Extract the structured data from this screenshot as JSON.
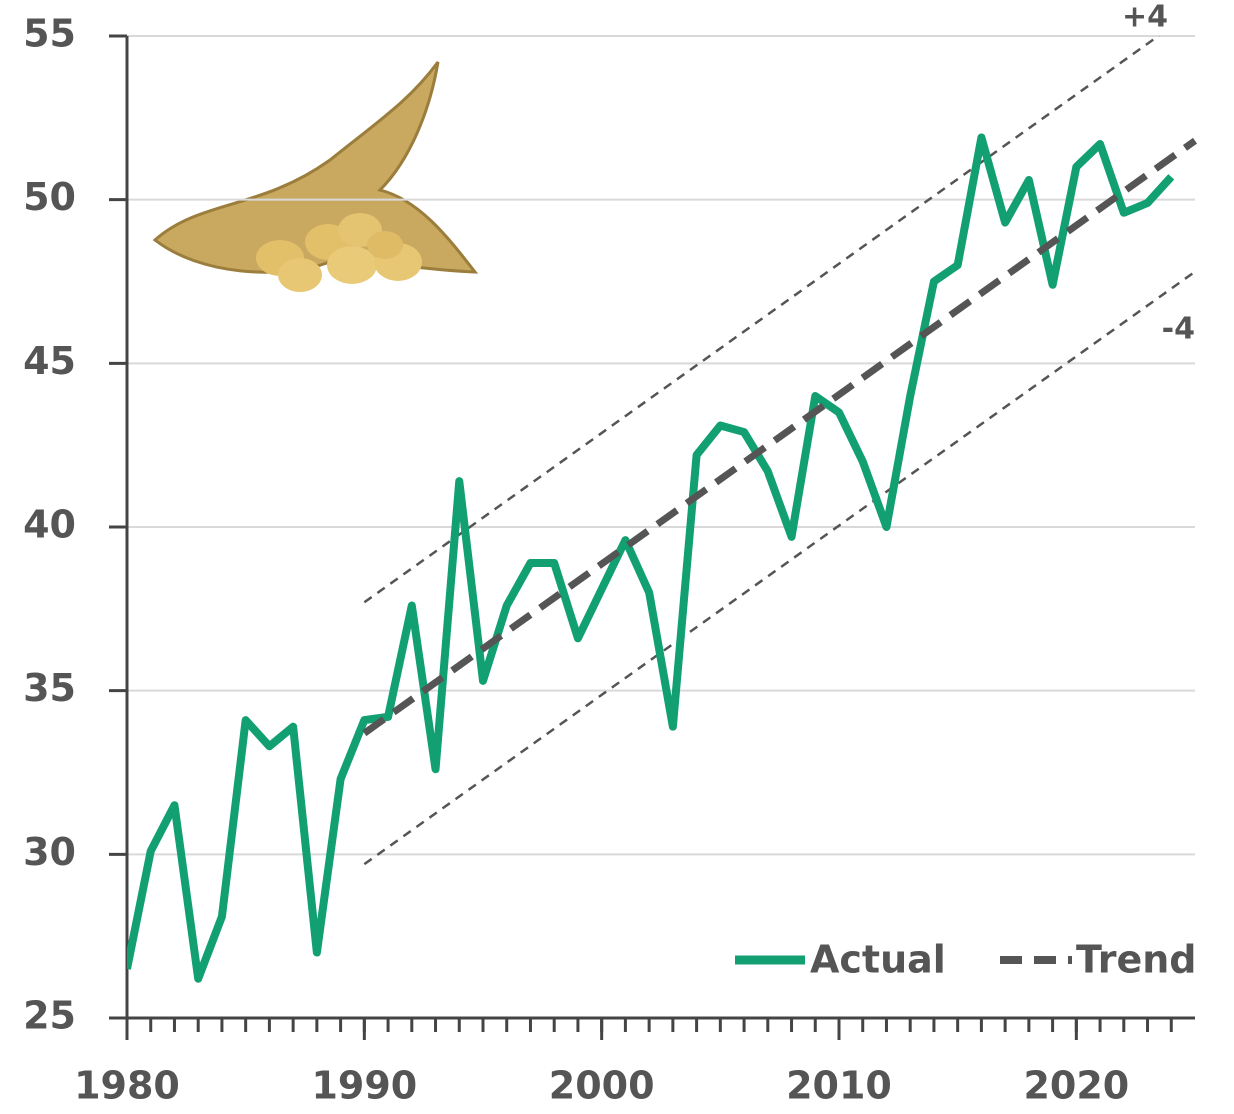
{
  "chart_data": {
    "type": "line",
    "x": [
      1980,
      1981,
      1982,
      1983,
      1984,
      1985,
      1986,
      1987,
      1988,
      1989,
      1990,
      1991,
      1992,
      1993,
      1994,
      1995,
      1996,
      1997,
      1998,
      1999,
      2000,
      2001,
      2002,
      2003,
      2004,
      2005,
      2006,
      2007,
      2008,
      2009,
      2010,
      2011,
      2012,
      2013,
      2014,
      2015,
      2016,
      2017,
      2018,
      2019,
      2020,
      2021,
      2022,
      2023,
      2024
    ],
    "series": [
      {
        "name": "Actual",
        "color": "#12a073",
        "values": [
          26.5,
          30.1,
          31.5,
          26.2,
          28.1,
          34.1,
          33.3,
          33.9,
          27.0,
          32.3,
          34.1,
          34.2,
          37.6,
          32.6,
          41.4,
          35.3,
          37.6,
          38.9,
          38.9,
          36.6,
          38.1,
          39.6,
          38.0,
          33.9,
          42.2,
          43.1,
          42.9,
          41.7,
          39.7,
          44.0,
          43.5,
          42.0,
          40.0,
          44.0,
          47.5,
          48.0,
          51.9,
          49.3,
          50.6,
          47.4,
          51.0,
          51.7,
          49.6,
          49.9,
          50.7
        ]
      },
      {
        "name": "Trend",
        "color": "#555555",
        "x": [
          1990,
          2025
        ],
        "values": [
          33.7,
          51.8
        ]
      }
    ],
    "bands": [
      {
        "name": "+4",
        "color": "#555555",
        "x": [
          1990,
          2025
        ],
        "values": [
          37.7,
          55.8
        ]
      },
      {
        "name": "-4",
        "color": "#555555",
        "x": [
          1990,
          2025
        ],
        "values": [
          29.7,
          47.8
        ]
      }
    ],
    "xlim": [
      1980,
      2025
    ],
    "xticks": [
      1980,
      1990,
      2000,
      2010,
      2020
    ],
    "ylim": [
      25,
      55
    ],
    "yticks": [
      25,
      30,
      35,
      40,
      45,
      50,
      55
    ],
    "grid": true,
    "legend": "bottom-right"
  }
}
